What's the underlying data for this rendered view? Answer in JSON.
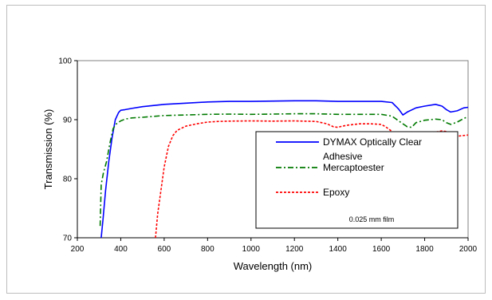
{
  "chart_data": {
    "type": "line",
    "title": "",
    "xlabel": "Wavelength (nm)",
    "ylabel": "Transmission (%)",
    "xlim": [
      200,
      2000
    ],
    "ylim": [
      70,
      100
    ],
    "x_ticks": [
      "200",
      "400",
      "600",
      "800",
      "1000",
      "1200",
      "1400",
      "1600",
      "1800",
      "2000"
    ],
    "y_ticks": [
      "70",
      "80",
      "90",
      "100"
    ],
    "grid": false,
    "legend_position": "lower-right",
    "annotation": "0.025 mm film",
    "series": [
      {
        "name": "DYMAX Optically Clear Adhesive",
        "legend_line1": "DYMAX Optically Clear",
        "legend_line2": "Adhesive",
        "color": "#0000ff",
        "dash": "solid",
        "x": [
          310,
          318,
          330,
          345,
          360,
          375,
          390,
          400,
          420,
          450,
          500,
          600,
          700,
          800,
          900,
          1000,
          1100,
          1200,
          1300,
          1400,
          1500,
          1600,
          1650,
          1680,
          1700,
          1720,
          1760,
          1800,
          1850,
          1880,
          1900,
          1920,
          1950,
          1980,
          2000
        ],
        "y": [
          70,
          73,
          78,
          83,
          87,
          90,
          91.2,
          91.6,
          91.7,
          91.9,
          92.2,
          92.6,
          92.8,
          93.0,
          93.1,
          93.1,
          93.15,
          93.2,
          93.2,
          93.1,
          93.1,
          93.1,
          92.9,
          91.8,
          90.8,
          91.3,
          92.0,
          92.3,
          92.6,
          92.3,
          91.7,
          91.3,
          91.5,
          92.0,
          92.1
        ]
      },
      {
        "name": "Mercaptoester",
        "color": "#007a00",
        "dash": "dashdot",
        "x": [
          305,
          310,
          320,
          335,
          350,
          365,
          380,
          400,
          420,
          450,
          500,
          600,
          700,
          800,
          900,
          1000,
          1100,
          1200,
          1300,
          1400,
          1500,
          1600,
          1650,
          1680,
          1700,
          1720,
          1740,
          1760,
          1800,
          1850,
          1880,
          1900,
          1920,
          1950,
          1980,
          2000
        ],
        "y": [
          72,
          79,
          81,
          83,
          86,
          88.5,
          89.3,
          89.8,
          90.1,
          90.3,
          90.4,
          90.7,
          90.8,
          90.9,
          90.95,
          90.9,
          90.95,
          91.0,
          91.0,
          90.9,
          90.9,
          90.9,
          90.6,
          89.8,
          89.3,
          88.8,
          88.7,
          89.5,
          89.9,
          90.1,
          90.0,
          89.5,
          89.2,
          89.6,
          90.2,
          90.5
        ]
      },
      {
        "name": "Epoxy",
        "color": "#ff0000",
        "dash": "dotted",
        "x": [
          560,
          570,
          585,
          600,
          620,
          640,
          660,
          700,
          750,
          800,
          850,
          900,
          1000,
          1100,
          1200,
          1300,
          1350,
          1380,
          1400,
          1420,
          1450,
          1500,
          1550,
          1600,
          1620,
          1650,
          1680,
          1700,
          1740,
          1760,
          1800,
          1850,
          1880,
          1900,
          1950,
          2000
        ],
        "y": [
          70,
          74,
          78,
          82,
          85.5,
          87.3,
          88.2,
          88.9,
          89.3,
          89.6,
          89.7,
          89.75,
          89.8,
          89.75,
          89.8,
          89.7,
          89.3,
          88.8,
          88.7,
          88.9,
          89.1,
          89.3,
          89.3,
          89.2,
          88.8,
          88.0,
          87.4,
          86.8,
          86.4,
          87.0,
          87.4,
          87.9,
          88.1,
          88.0,
          87.2,
          87.4
        ]
      }
    ]
  }
}
